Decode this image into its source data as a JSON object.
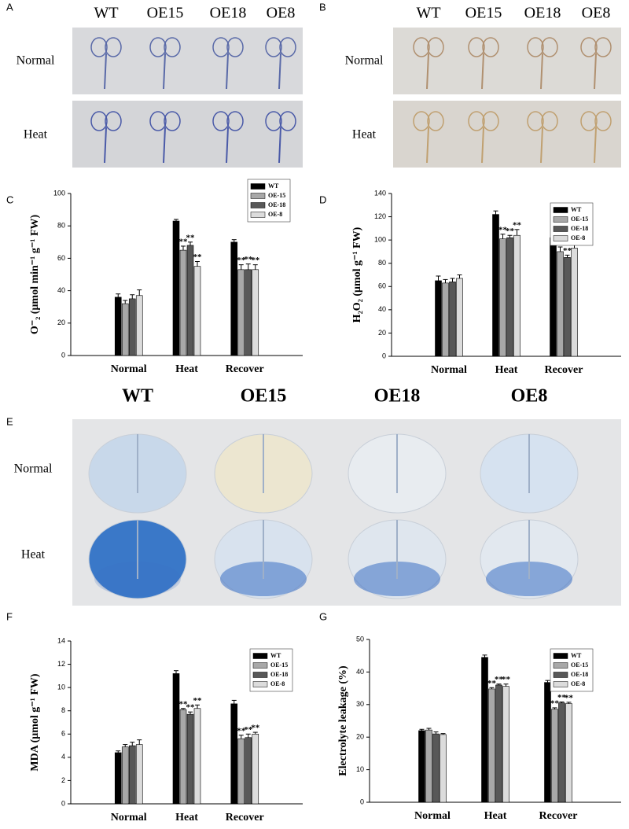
{
  "panels": {
    "A": {
      "label": "A",
      "columns": [
        "WT",
        "OE15",
        "OE18",
        "OE8"
      ],
      "rows": [
        "Normal",
        "Heat"
      ]
    },
    "B": {
      "label": "B",
      "columns": [
        "WT",
        "OE15",
        "OE18",
        "OE8"
      ],
      "rows": [
        "Normal",
        "Heat"
      ]
    },
    "E": {
      "label": "E",
      "columns": [
        "WT",
        "OE15",
        "OE18",
        "OE8"
      ],
      "rows": [
        "Normal",
        "Heat"
      ]
    }
  },
  "chart_data": [
    {
      "type": "bar",
      "panel_label": "C",
      "ylabel": "O⁻₂ (μmol min⁻¹ g⁻¹ FW)",
      "categories": [
        "Normal",
        "Heat",
        "Recover"
      ],
      "ylim": [
        0,
        100
      ],
      "yticks": [
        0,
        20,
        40,
        60,
        80,
        100
      ],
      "legend": "upper right",
      "series": [
        {
          "name": "WT",
          "color": "#000000",
          "values": [
            36,
            83,
            70
          ],
          "errors": [
            2,
            1,
            1.5
          ],
          "labels": [
            null,
            null,
            null
          ]
        },
        {
          "name": "OE-15",
          "color": "#a8a8a8",
          "values": [
            32,
            65,
            53
          ],
          "errors": [
            2,
            2.5,
            3
          ],
          "labels": [
            null,
            "**",
            "**"
          ]
        },
        {
          "name": "OE-18",
          "color": "#585858",
          "values": [
            35,
            68,
            53
          ],
          "errors": [
            2.5,
            2,
            3.5
          ],
          "labels": [
            null,
            "**",
            "**"
          ]
        },
        {
          "name": "OE-8",
          "color": "#dcdcdc",
          "values": [
            37,
            55,
            53
          ],
          "errors": [
            3.5,
            3,
            3
          ],
          "labels": [
            null,
            "**",
            "**"
          ]
        }
      ]
    },
    {
      "type": "bar",
      "panel_label": "D",
      "ylabel": "H₂O₂ (μmol g⁻¹ FW)",
      "categories": [
        "Normal",
        "Heat",
        "Recover"
      ],
      "ylim": [
        0,
        140
      ],
      "yticks": [
        0,
        20,
        40,
        60,
        80,
        100,
        120,
        140
      ],
      "legend": "upper right",
      "series": [
        {
          "name": "WT",
          "color": "#000000",
          "values": [
            65,
            122,
            102
          ],
          "errors": [
            4,
            3,
            4
          ],
          "labels": [
            null,
            null,
            null
          ]
        },
        {
          "name": "OE-15",
          "color": "#a8a8a8",
          "values": [
            63,
            101,
            90
          ],
          "errors": [
            3,
            4,
            4
          ],
          "labels": [
            null,
            "**",
            "**"
          ]
        },
        {
          "name": "OE-18",
          "color": "#585858",
          "values": [
            64,
            102,
            85
          ],
          "errors": [
            3,
            2,
            2
          ],
          "labels": [
            null,
            "**",
            "**"
          ]
        },
        {
          "name": "OE-8",
          "color": "#dcdcdc",
          "values": [
            67,
            104,
            93
          ],
          "errors": [
            3,
            5,
            3
          ],
          "labels": [
            null,
            "**",
            "*"
          ]
        }
      ]
    },
    {
      "type": "bar",
      "panel_label": "F",
      "ylabel": "MDA (μmol g⁻¹ FW)",
      "categories": [
        "Normal",
        "Heat",
        "Recover"
      ],
      "ylim": [
        0,
        14
      ],
      "yticks": [
        0,
        2,
        4,
        6,
        8,
        10,
        12,
        14
      ],
      "legend": "upper right",
      "series": [
        {
          "name": "WT",
          "color": "#000000",
          "values": [
            4.4,
            11.2,
            8.6
          ],
          "errors": [
            0.15,
            0.25,
            0.3
          ],
          "labels": [
            null,
            null,
            null
          ]
        },
        {
          "name": "OE-15",
          "color": "#a8a8a8",
          "values": [
            4.9,
            8.1,
            5.6
          ],
          "errors": [
            0.2,
            0.1,
            0.3
          ],
          "labels": [
            null,
            "**",
            "**"
          ]
        },
        {
          "name": "OE-18",
          "color": "#585858",
          "values": [
            5.0,
            7.7,
            5.7
          ],
          "errors": [
            0.3,
            0.2,
            0.3
          ],
          "labels": [
            null,
            "**",
            "**"
          ]
        },
        {
          "name": "OE-8",
          "color": "#dcdcdc",
          "values": [
            5.1,
            8.2,
            6.0
          ],
          "errors": [
            0.4,
            0.3,
            0.15
          ],
          "labels": [
            null,
            "**",
            "**"
          ]
        }
      ]
    },
    {
      "type": "bar",
      "panel_label": "G",
      "ylabel": "Electrolyte leakage (%)",
      "categories": [
        "Normal",
        "Heat",
        "Recover"
      ],
      "ylim": [
        0,
        50
      ],
      "yticks": [
        0,
        10,
        20,
        30,
        40,
        50
      ],
      "legend": "upper right",
      "series": [
        {
          "name": "WT",
          "color": "#000000",
          "values": [
            22,
            44.5,
            36.8
          ],
          "errors": [
            0.4,
            0.7,
            0.6
          ],
          "labels": [
            null,
            null,
            null
          ]
        },
        {
          "name": "OE-15",
          "color": "#a8a8a8",
          "values": [
            22.2,
            34.8,
            28.6
          ],
          "errors": [
            0.5,
            0.4,
            0.4
          ],
          "labels": [
            null,
            "**",
            "**"
          ]
        },
        {
          "name": "OE-18",
          "color": "#585858",
          "values": [
            21,
            36,
            30.5
          ],
          "errors": [
            0.6,
            0.3,
            0.3
          ],
          "labels": [
            null,
            "**",
            "**"
          ]
        },
        {
          "name": "OE-8",
          "color": "#dcdcdc",
          "values": [
            20.8,
            35.6,
            30.3
          ],
          "errors": [
            0.3,
            0.7,
            0.4
          ],
          "labels": [
            null,
            "**",
            "**"
          ]
        }
      ]
    }
  ]
}
